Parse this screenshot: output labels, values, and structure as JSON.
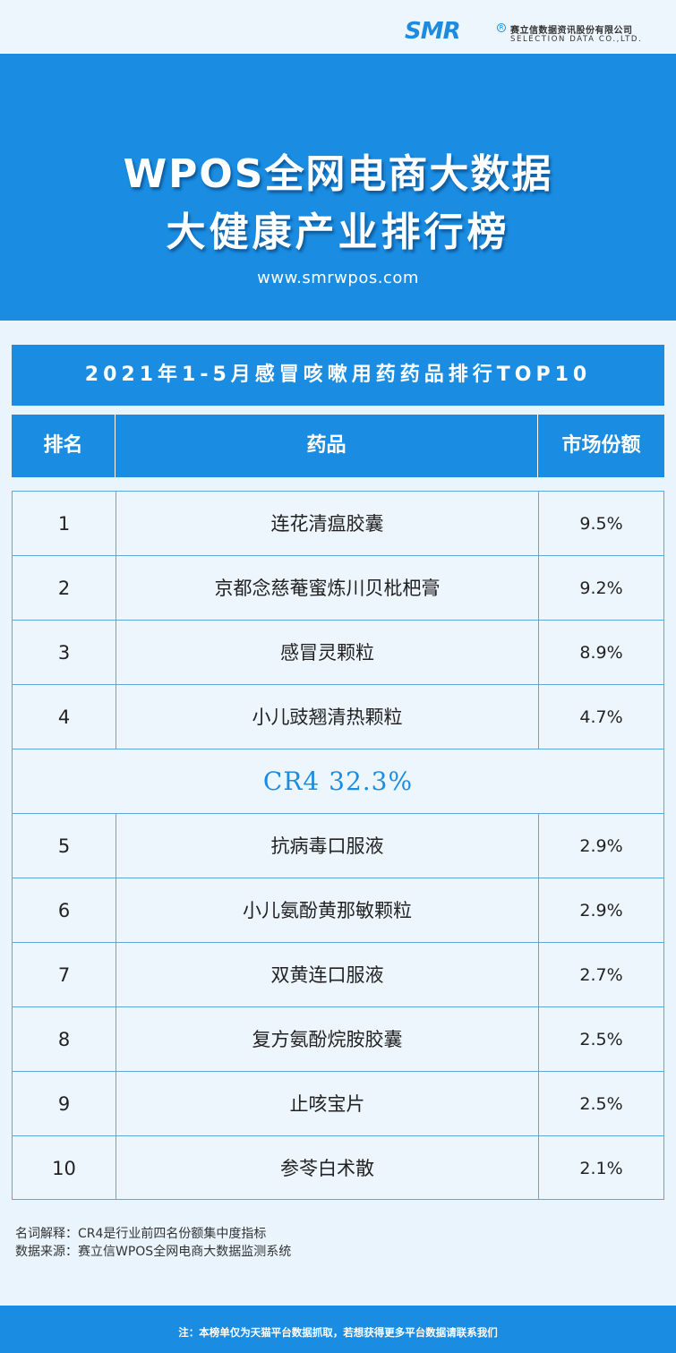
{
  "brand": {
    "logo_text": "SMR",
    "registered_mark": "R",
    "company_cn": "赛立信数据资讯股份有限公司",
    "company_en": "SELECTION DATA CO.,LTD."
  },
  "hero": {
    "title_line1": "WPOS全网电商大数据",
    "title_line2": "大健康产业排行榜",
    "url": "www.smrwpos.com"
  },
  "section_title": "2021年1-5月感冒咳嗽用药药品排行TOP10",
  "table": {
    "headers": {
      "rank": "排名",
      "drug": "药品",
      "share": "市场份额"
    },
    "rows_top": [
      {
        "rank": "1",
        "drug": "连花清瘟胶囊",
        "share": "9.5%"
      },
      {
        "rank": "2",
        "drug": "京都念慈菴蜜炼川贝枇杷膏",
        "share": "9.2%"
      },
      {
        "rank": "3",
        "drug": "感冒灵颗粒",
        "share": "8.9%"
      },
      {
        "rank": "4",
        "drug": "小儿豉翘清热颗粒",
        "share": "4.7%"
      }
    ],
    "cr4": "CR4  32.3%",
    "rows_bottom": [
      {
        "rank": "5",
        "drug": "抗病毒口服液",
        "share": "2.9%"
      },
      {
        "rank": "6",
        "drug": "小儿氨酚黄那敏颗粒",
        "share": "2.9%"
      },
      {
        "rank": "7",
        "drug": "双黄连口服液",
        "share": "2.7%"
      },
      {
        "rank": "8",
        "drug": "复方氨酚烷胺胶囊",
        "share": "2.5%"
      },
      {
        "rank": "9",
        "drug": "止咳宝片",
        "share": "2.5%"
      },
      {
        "rank": "10",
        "drug": "参苓白术散",
        "share": "2.1%"
      }
    ]
  },
  "notes": {
    "definition": "名词解释：CR4是行业前四名份额集中度指标",
    "source": "数据来源：赛立信WPOS全网电商大数据监测系统"
  },
  "footer": {
    "text": "注：本榜单仅为天猫平台数据抓取，若想获得更多平台数据请联系我们"
  },
  "colors": {
    "primary_blue": "#1a8de2",
    "page_background": "#eaf4fc",
    "border_blue": "#5aa8e0",
    "logo_red": "#e0342b"
  }
}
